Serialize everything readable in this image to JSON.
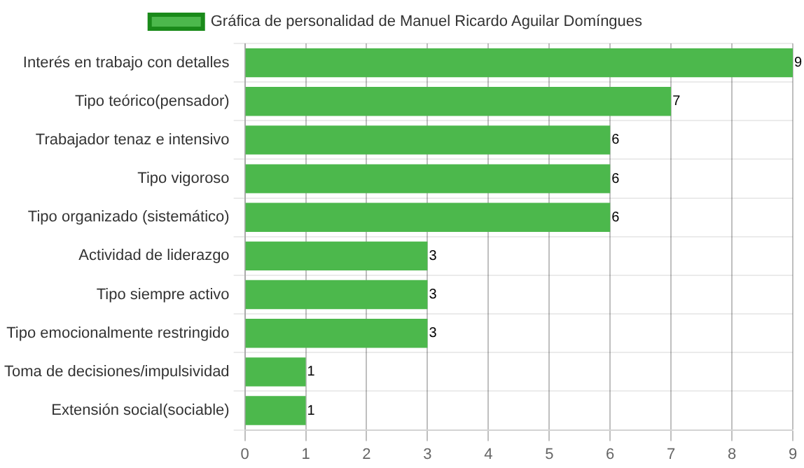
{
  "chart_data": {
    "type": "bar",
    "orientation": "horizontal",
    "categories": [
      "Interés en trabajo con detalles",
      "Tipo teórico(pensador)",
      "Trabajador tenaz e intensivo",
      "Tipo vigoroso",
      "Tipo organizado (sistemático)",
      "Actividad de liderazgo",
      "Tipo siempre activo",
      "Tipo emocionalmente restringido",
      "Toma de decisiones/impulsividad",
      "Extensión social(sociable)"
    ],
    "series": [
      {
        "name": "Gráfica de personalidad de Manuel Ricardo Aguilar Domíngues",
        "color": "#4cb84c",
        "values": [
          9,
          7,
          6,
          6,
          6,
          3,
          3,
          3,
          1,
          1
        ]
      }
    ],
    "xlim": [
      0,
      9
    ],
    "xticks": [
      0,
      1,
      2,
      3,
      4,
      5,
      6,
      7,
      8,
      9
    ],
    "grid": true,
    "legend": "top",
    "data_labels": true
  }
}
